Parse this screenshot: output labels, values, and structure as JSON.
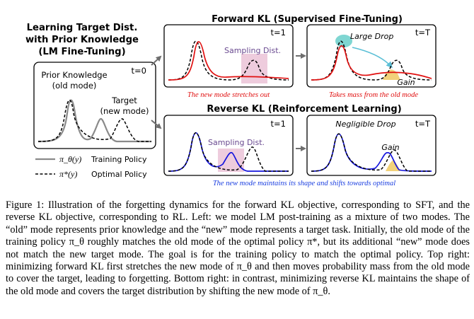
{
  "figure": {
    "left_panel": {
      "title_lines": [
        "Learning Target Dist.",
        "with Prior Knowledge",
        "(LM Fine-Tuning)"
      ],
      "time_label": "t=0",
      "prior_label_lines": [
        "Prior Knowledge",
        "(old mode)"
      ],
      "target_label_lines": [
        "Target",
        "(new mode)"
      ]
    },
    "legend": {
      "training": {
        "symbol": "π_θ(y)",
        "text": "Training Policy"
      },
      "optimal": {
        "symbol": "π*(y)",
        "text": "Optimal Policy"
      }
    },
    "forward_kl": {
      "title": "Forward KL (Supervised Fine-Tuning)",
      "panel1": {
        "time_label": "t=1",
        "annotation": "Sampling Dist."
      },
      "panel2": {
        "time_label": "t=T",
        "drop_label": "Large Drop",
        "gain_label": "Gain"
      },
      "caption1": "The new mode stretches out",
      "caption2": "Takes mass from the old mode"
    },
    "reverse_kl": {
      "title": "Reverse KL (Reinforcement Learning)",
      "panel1": {
        "time_label": "t=1",
        "annotation": "Sampling Dist."
      },
      "panel2": {
        "time_label": "t=T",
        "drop_label": "Negligible Drop",
        "gain_label": "Gain"
      },
      "caption": "The new mode maintains its shape and shifts towards optimal"
    },
    "colors": {
      "forward": "#e01010",
      "reverse": "#1515dd",
      "training": "#8a8a8a",
      "sampling_box": "#eeccdd",
      "drop_highlight": "#7fd6d2",
      "gain_highlight": "#f2d27a",
      "arrow": "#6e6e6e",
      "curve_arrow": "#5bbfd6",
      "reverse_caption": "#1a3ee0",
      "forward_caption": "#e01010"
    }
  },
  "caption": {
    "label": "Figure 1:",
    "text": "Illustration of the forgetting dynamics for the forward KL objective, corresponding to SFT, and the reverse KL objective, corresponding to RL. Left: we model LM post-training as a mixture of two modes. The “old” mode represents prior knowledge and the “new” mode represents a target task. Initially, the old mode of the training policy π_θ roughly matches the old mode of the optimal policy π*, but its additional “new” mode does not match the new target mode. The goal is for the training policy to match the optimal policy. Top right: minimizing forward KL first stretches the new mode of π_θ and then moves probability mass from the old mode to cover the target, leading to forgetting. Bottom right: in contrast, minimizing reverse KL maintains the shape of the old mode and covers the target distribution by shifting the new mode of π_θ."
  }
}
